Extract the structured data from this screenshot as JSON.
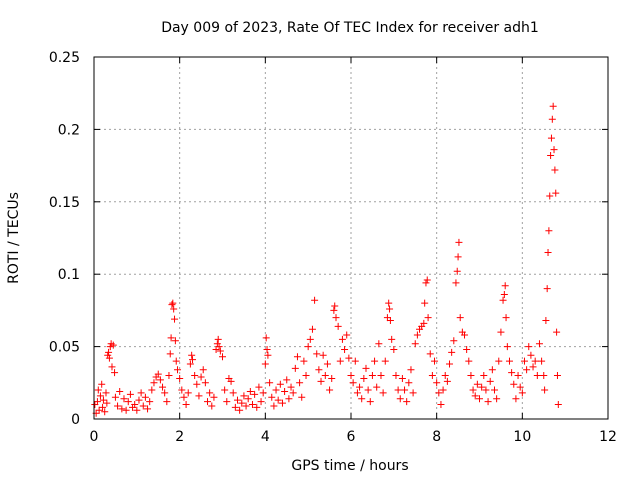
{
  "chart_data": {
    "type": "scatter",
    "title": "Day 009 of 2023, Rate Of TEC Index for receiver adh1",
    "xlabel": "GPS time / hours",
    "ylabel": "ROTI / TECUs",
    "xlim": [
      0,
      12
    ],
    "ylim": [
      0,
      0.25
    ],
    "grid": true,
    "marker": "+",
    "x_ticks": [
      0,
      2,
      4,
      6,
      8,
      10,
      12
    ],
    "x_tick_labels": [
      "0",
      "2",
      "4",
      "6",
      "8",
      "10",
      "12"
    ],
    "y_ticks": [
      0,
      0.05,
      0.1,
      0.15,
      0.2,
      0.25
    ],
    "y_tick_labels": [
      "0",
      "0.05",
      "0.1",
      "0.15",
      "0.2",
      "0.25"
    ],
    "series": [
      {
        "name": "ROTI",
        "color": "#ff0000",
        "points": [
          [
            0.02,
            0.01
          ],
          [
            0.05,
            0.004
          ],
          [
            0.08,
            0.012
          ],
          [
            0.1,
            0.02
          ],
          [
            0.12,
            0.006
          ],
          [
            0.15,
            0.016
          ],
          [
            0.18,
            0.024
          ],
          [
            0.2,
            0.008
          ],
          [
            0.22,
            0.013
          ],
          [
            0.25,
            0.005
          ],
          [
            0.28,
            0.018
          ],
          [
            0.3,
            0.011
          ],
          [
            0.32,
            0.044
          ],
          [
            0.34,
            0.046
          ],
          [
            0.36,
            0.042
          ],
          [
            0.38,
            0.05
          ],
          [
            0.4,
            0.052
          ],
          [
            0.42,
            0.036
          ],
          [
            0.45,
            0.051
          ],
          [
            0.48,
            0.032
          ],
          [
            0.5,
            0.015
          ],
          [
            0.55,
            0.009
          ],
          [
            0.6,
            0.019
          ],
          [
            0.65,
            0.007
          ],
          [
            0.7,
            0.014
          ],
          [
            0.75,
            0.006
          ],
          [
            0.8,
            0.012
          ],
          [
            0.85,
            0.017
          ],
          [
            0.9,
            0.008
          ],
          [
            0.95,
            0.01
          ],
          [
            1.0,
            0.006
          ],
          [
            1.05,
            0.013
          ],
          [
            1.1,
            0.018
          ],
          [
            1.15,
            0.009
          ],
          [
            1.2,
            0.015
          ],
          [
            1.25,
            0.007
          ],
          [
            1.3,
            0.012
          ],
          [
            1.35,
            0.02
          ],
          [
            1.4,
            0.025
          ],
          [
            1.45,
            0.029
          ],
          [
            1.5,
            0.031
          ],
          [
            1.55,
            0.027
          ],
          [
            1.6,
            0.022
          ],
          [
            1.65,
            0.018
          ],
          [
            1.7,
            0.012
          ],
          [
            1.75,
            0.03
          ],
          [
            1.78,
            0.045
          ],
          [
            1.8,
            0.056
          ],
          [
            1.82,
            0.079
          ],
          [
            1.84,
            0.08
          ],
          [
            1.86,
            0.076
          ],
          [
            1.88,
            0.069
          ],
          [
            1.9,
            0.054
          ],
          [
            1.92,
            0.04
          ],
          [
            1.95,
            0.034
          ],
          [
            2.0,
            0.028
          ],
          [
            2.05,
            0.02
          ],
          [
            2.1,
            0.015
          ],
          [
            2.15,
            0.01
          ],
          [
            2.2,
            0.018
          ],
          [
            2.25,
            0.038
          ],
          [
            2.28,
            0.044
          ],
          [
            2.3,
            0.041
          ],
          [
            2.35,
            0.03
          ],
          [
            2.4,
            0.024
          ],
          [
            2.45,
            0.016
          ],
          [
            2.5,
            0.029
          ],
          [
            2.55,
            0.034
          ],
          [
            2.6,
            0.025
          ],
          [
            2.65,
            0.012
          ],
          [
            2.7,
            0.018
          ],
          [
            2.75,
            0.009
          ],
          [
            2.8,
            0.015
          ],
          [
            2.85,
            0.048
          ],
          [
            2.88,
            0.052
          ],
          [
            2.9,
            0.055
          ],
          [
            2.92,
            0.05
          ],
          [
            2.95,
            0.047
          ],
          [
            3.0,
            0.043
          ],
          [
            3.05,
            0.02
          ],
          [
            3.1,
            0.012
          ],
          [
            3.15,
            0.028
          ],
          [
            3.2,
            0.026
          ],
          [
            3.25,
            0.018
          ],
          [
            3.3,
            0.008
          ],
          [
            3.35,
            0.013
          ],
          [
            3.4,
            0.006
          ],
          [
            3.45,
            0.011
          ],
          [
            3.5,
            0.016
          ],
          [
            3.55,
            0.009
          ],
          [
            3.6,
            0.014
          ],
          [
            3.65,
            0.019
          ],
          [
            3.7,
            0.01
          ],
          [
            3.75,
            0.017
          ],
          [
            3.8,
            0.008
          ],
          [
            3.85,
            0.022
          ],
          [
            3.9,
            0.012
          ],
          [
            3.95,
            0.018
          ],
          [
            4.0,
            0.038
          ],
          [
            4.02,
            0.056
          ],
          [
            4.04,
            0.048
          ],
          [
            4.06,
            0.044
          ],
          [
            4.1,
            0.025
          ],
          [
            4.15,
            0.015
          ],
          [
            4.2,
            0.009
          ],
          [
            4.25,
            0.02
          ],
          [
            4.3,
            0.013
          ],
          [
            4.35,
            0.024
          ],
          [
            4.4,
            0.011
          ],
          [
            4.45,
            0.019
          ],
          [
            4.5,
            0.027
          ],
          [
            4.55,
            0.014
          ],
          [
            4.6,
            0.022
          ],
          [
            4.65,
            0.018
          ],
          [
            4.7,
            0.035
          ],
          [
            4.75,
            0.043
          ],
          [
            4.8,
            0.025
          ],
          [
            4.85,
            0.015
          ],
          [
            4.9,
            0.04
          ],
          [
            4.95,
            0.03
          ],
          [
            5.0,
            0.05
          ],
          [
            5.05,
            0.055
          ],
          [
            5.1,
            0.062
          ],
          [
            5.15,
            0.082
          ],
          [
            5.2,
            0.045
          ],
          [
            5.25,
            0.034
          ],
          [
            5.3,
            0.026
          ],
          [
            5.35,
            0.044
          ],
          [
            5.4,
            0.03
          ],
          [
            5.45,
            0.038
          ],
          [
            5.5,
            0.02
          ],
          [
            5.55,
            0.028
          ],
          [
            5.6,
            0.075
          ],
          [
            5.62,
            0.078
          ],
          [
            5.65,
            0.07
          ],
          [
            5.7,
            0.064
          ],
          [
            5.75,
            0.04
          ],
          [
            5.8,
            0.055
          ],
          [
            5.85,
            0.048
          ],
          [
            5.9,
            0.058
          ],
          [
            5.95,
            0.042
          ],
          [
            6.0,
            0.03
          ],
          [
            6.05,
            0.025
          ],
          [
            6.1,
            0.04
          ],
          [
            6.15,
            0.018
          ],
          [
            6.2,
            0.022
          ],
          [
            6.25,
            0.014
          ],
          [
            6.3,
            0.028
          ],
          [
            6.35,
            0.035
          ],
          [
            6.4,
            0.02
          ],
          [
            6.45,
            0.012
          ],
          [
            6.5,
            0.03
          ],
          [
            6.55,
            0.04
          ],
          [
            6.6,
            0.022
          ],
          [
            6.65,
            0.052
          ],
          [
            6.7,
            0.03
          ],
          [
            6.75,
            0.018
          ],
          [
            6.8,
            0.04
          ],
          [
            6.85,
            0.07
          ],
          [
            6.88,
            0.08
          ],
          [
            6.9,
            0.076
          ],
          [
            6.92,
            0.068
          ],
          [
            6.95,
            0.055
          ],
          [
            7.0,
            0.048
          ],
          [
            7.05,
            0.03
          ],
          [
            7.1,
            0.02
          ],
          [
            7.15,
            0.014
          ],
          [
            7.2,
            0.028
          ],
          [
            7.25,
            0.02
          ],
          [
            7.3,
            0.012
          ],
          [
            7.35,
            0.025
          ],
          [
            7.4,
            0.034
          ],
          [
            7.45,
            0.018
          ],
          [
            7.5,
            0.052
          ],
          [
            7.55,
            0.058
          ],
          [
            7.6,
            0.062
          ],
          [
            7.65,
            0.064
          ],
          [
            7.7,
            0.066
          ],
          [
            7.72,
            0.08
          ],
          [
            7.75,
            0.094
          ],
          [
            7.78,
            0.096
          ],
          [
            7.8,
            0.07
          ],
          [
            7.85,
            0.045
          ],
          [
            7.9,
            0.03
          ],
          [
            7.95,
            0.04
          ],
          [
            8.0,
            0.025
          ],
          [
            8.05,
            0.018
          ],
          [
            8.1,
            0.01
          ],
          [
            8.15,
            0.02
          ],
          [
            8.2,
            0.03
          ],
          [
            8.25,
            0.026
          ],
          [
            8.3,
            0.038
          ],
          [
            8.35,
            0.046
          ],
          [
            8.4,
            0.054
          ],
          [
            8.45,
            0.094
          ],
          [
            8.48,
            0.102
          ],
          [
            8.5,
            0.112
          ],
          [
            8.52,
            0.122
          ],
          [
            8.55,
            0.07
          ],
          [
            8.6,
            0.06
          ],
          [
            8.65,
            0.058
          ],
          [
            8.7,
            0.048
          ],
          [
            8.75,
            0.04
          ],
          [
            8.8,
            0.03
          ],
          [
            8.85,
            0.02
          ],
          [
            8.9,
            0.016
          ],
          [
            8.95,
            0.024
          ],
          [
            9.0,
            0.014
          ],
          [
            9.05,
            0.022
          ],
          [
            9.1,
            0.03
          ],
          [
            9.15,
            0.02
          ],
          [
            9.2,
            0.012
          ],
          [
            9.25,
            0.026
          ],
          [
            9.3,
            0.034
          ],
          [
            9.35,
            0.02
          ],
          [
            9.4,
            0.014
          ],
          [
            9.45,
            0.04
          ],
          [
            9.5,
            0.06
          ],
          [
            9.55,
            0.082
          ],
          [
            9.58,
            0.086
          ],
          [
            9.6,
            0.092
          ],
          [
            9.62,
            0.07
          ],
          [
            9.65,
            0.05
          ],
          [
            9.7,
            0.04
          ],
          [
            9.75,
            0.032
          ],
          [
            9.8,
            0.024
          ],
          [
            9.85,
            0.014
          ],
          [
            9.9,
            0.03
          ],
          [
            9.95,
            0.022
          ],
          [
            10.0,
            0.018
          ],
          [
            10.05,
            0.04
          ],
          [
            10.1,
            0.034
          ],
          [
            10.15,
            0.05
          ],
          [
            10.2,
            0.044
          ],
          [
            10.25,
            0.036
          ],
          [
            10.3,
            0.04
          ],
          [
            10.35,
            0.03
          ],
          [
            10.4,
            0.052
          ],
          [
            10.45,
            0.04
          ],
          [
            10.5,
            0.03
          ],
          [
            10.52,
            0.02
          ],
          [
            10.55,
            0.068
          ],
          [
            10.58,
            0.09
          ],
          [
            10.6,
            0.115
          ],
          [
            10.62,
            0.13
          ],
          [
            10.64,
            0.154
          ],
          [
            10.66,
            0.182
          ],
          [
            10.68,
            0.194
          ],
          [
            10.7,
            0.207
          ],
          [
            10.72,
            0.216
          ],
          [
            10.74,
            0.186
          ],
          [
            10.76,
            0.172
          ],
          [
            10.78,
            0.156
          ],
          [
            10.8,
            0.06
          ],
          [
            10.82,
            0.03
          ],
          [
            10.84,
            0.01
          ]
        ]
      }
    ]
  }
}
